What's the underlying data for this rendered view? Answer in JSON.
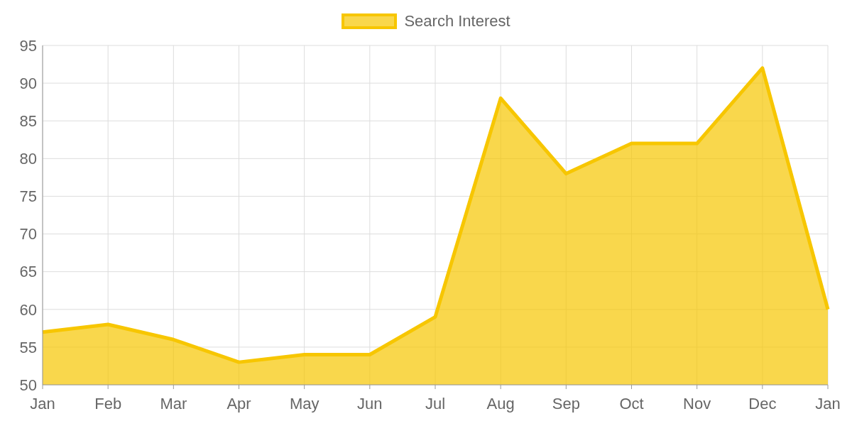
{
  "chart_data": {
    "type": "area",
    "categories": [
      "Jan",
      "Feb",
      "Mar",
      "Apr",
      "May",
      "Jun",
      "Jul",
      "Aug",
      "Sep",
      "Oct",
      "Nov",
      "Dec",
      "Jan"
    ],
    "series": [
      {
        "name": "Search Interest",
        "color": "#f7c600",
        "values": [
          57,
          58,
          56,
          53,
          54,
          54,
          59,
          88,
          78,
          82,
          82,
          92,
          60
        ]
      }
    ],
    "ylim": [
      50,
      95
    ],
    "yticks": [
      50,
      55,
      60,
      65,
      70,
      75,
      80,
      85,
      90,
      95
    ],
    "grid": true,
    "legend": "top"
  }
}
